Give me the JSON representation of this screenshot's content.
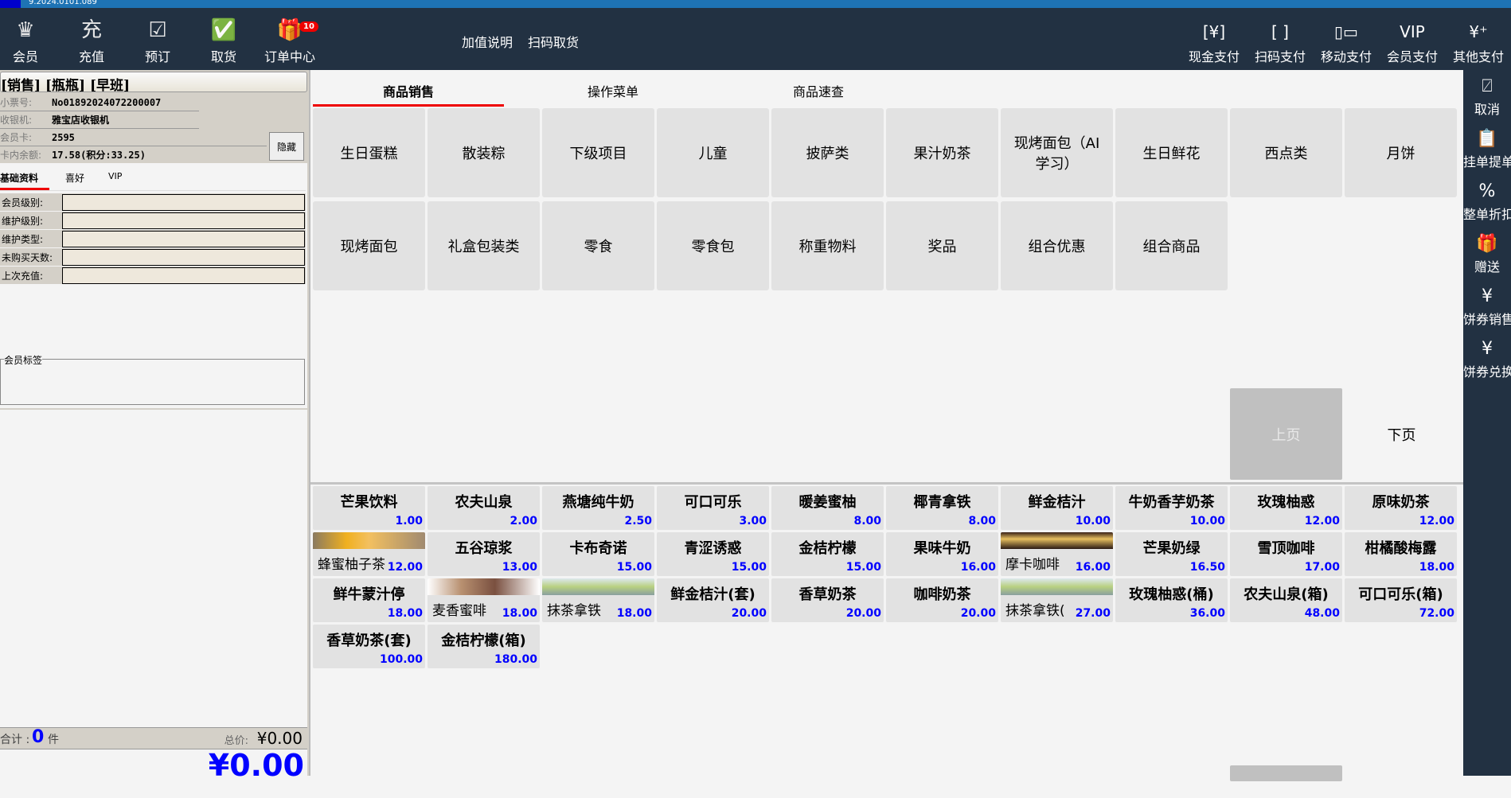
{
  "window": {
    "version": "9.2024.0101.089"
  },
  "header": {
    "left_buttons": [
      {
        "label": "会员",
        "icon": "crown-icon",
        "glyph": "♛"
      },
      {
        "label": "充值",
        "icon": "recharge-icon",
        "glyph": "充"
      },
      {
        "label": "预订",
        "icon": "calendar-check-icon",
        "glyph": "☑"
      },
      {
        "label": "取货",
        "icon": "package-check-icon",
        "glyph": "✅"
      },
      {
        "label": "订单中心",
        "icon": "gift-icon",
        "glyph": "🎁",
        "badge": "10"
      }
    ],
    "links": [
      "加值说明",
      "扫码取货"
    ],
    "payments": [
      {
        "label": "现金支付",
        "icon": "cash-icon",
        "glyph": "[¥]"
      },
      {
        "label": "扫码支付",
        "icon": "scan-icon",
        "glyph": "[ ]"
      },
      {
        "label": "移动支付",
        "icon": "mobile-pay-icon",
        "glyph": "▯▭"
      },
      {
        "label": "会员支付",
        "icon": "vip-icon",
        "glyph": "VIP"
      },
      {
        "label": "其他支付",
        "icon": "other-pay-icon",
        "glyph": "¥⁺"
      }
    ]
  },
  "left": {
    "title": "[销售] [瓶瓶] [早班]",
    "info": [
      {
        "label": "小票号:",
        "value": "No01892024072200007"
      },
      {
        "label": "收银机:",
        "value": "雅宝店收银机"
      },
      {
        "label": "会员卡:",
        "value": "2595"
      },
      {
        "label": "卡内余额:",
        "value": "17.58(积分:33.25)"
      }
    ],
    "hide_label": "隐藏",
    "tabs": [
      "基础资料",
      "喜好",
      "VIP"
    ],
    "fields": [
      {
        "label": "会员级别:",
        "value": ""
      },
      {
        "label": "维护级别:",
        "value": ""
      },
      {
        "label": "维护类型:",
        "value": ""
      },
      {
        "label": "未购买天数:",
        "value": ""
      },
      {
        "label": "上次充值:",
        "value": ""
      }
    ],
    "tag_label": "会员标签",
    "summary": {
      "count_label": "合计 :",
      "count": "0",
      "unit": "件",
      "total_label": "总价:",
      "total": "¥0.00"
    },
    "grand_total": "¥0.00"
  },
  "main": {
    "tabs": [
      "商品销售",
      "操作菜单",
      "商品速查"
    ],
    "categories": [
      "生日蛋糕",
      "散装粽",
      "下级项目",
      "儿童",
      "披萨类",
      "果汁奶茶",
      "现烤面包（AI学习）",
      "生日鲜花",
      "西点类",
      "月饼",
      "现烤面包",
      "礼盒包装类",
      "零食",
      "零食包",
      "称重物料",
      "奖品",
      "组合优惠",
      "组合商品"
    ],
    "pager": {
      "prev": "上页",
      "next": "下页"
    },
    "products": [
      {
        "name": "芒果饮料",
        "price": "1.00"
      },
      {
        "name": "农夫山泉",
        "price": "2.00"
      },
      {
        "name": "燕塘纯牛奶",
        "price": "2.50"
      },
      {
        "name": "可口可乐",
        "price": "3.00"
      },
      {
        "name": "暖姜蜜柚",
        "price": "8.00"
      },
      {
        "name": "椰青拿铁",
        "price": "8.00"
      },
      {
        "name": "鲜金桔汁",
        "price": "10.00"
      },
      {
        "name": "牛奶香芋奶茶",
        "price": "10.00"
      },
      {
        "name": "玫瑰柚惑",
        "price": "12.00"
      },
      {
        "name": "原味奶茶",
        "price": "12.00"
      },
      {
        "name": "蜂蜜柚子茶",
        "price": "12.00",
        "image": "honey"
      },
      {
        "name": "五谷琼浆",
        "price": "13.00"
      },
      {
        "name": "卡布奇诺",
        "price": "15.00"
      },
      {
        "name": "青涩诱惑",
        "price": "15.00"
      },
      {
        "name": "金桔柠檬",
        "price": "15.00"
      },
      {
        "name": "果味牛奶",
        "price": "16.00"
      },
      {
        "name": "摩卡咖啡",
        "price": "16.00",
        "image": "mocha"
      },
      {
        "name": "芒果奶绿",
        "price": "16.50"
      },
      {
        "name": "雪顶咖啡",
        "price": "17.00"
      },
      {
        "name": "柑橘酸梅露",
        "price": "18.00"
      },
      {
        "name": "鲜牛蒙汁停",
        "price": "18.00"
      },
      {
        "name": "麦香蜜啡",
        "price": "18.00",
        "image": "coffee"
      },
      {
        "name": "抹茶拿铁",
        "price": "18.00",
        "image": "matcha"
      },
      {
        "name": "鲜金桔汁(套)",
        "price": "20.00"
      },
      {
        "name": "香草奶茶",
        "price": "20.00"
      },
      {
        "name": "咖啡奶茶",
        "price": "20.00"
      },
      {
        "name": "抹茶拿铁(",
        "price": "27.00",
        "image": "matcha"
      },
      {
        "name": "玫瑰柚惑(桶)",
        "price": "36.00"
      },
      {
        "name": "农夫山泉(箱)",
        "price": "48.00"
      },
      {
        "name": "可口可乐(箱)",
        "price": "72.00"
      },
      {
        "name": "香草奶茶(套)",
        "price": "100.00"
      },
      {
        "name": "金桔柠檬(箱)",
        "price": "180.00"
      }
    ]
  },
  "right_sidebar": [
    {
      "label": "取消",
      "icon": "cancel-order-icon",
      "glyph": "⍁"
    },
    {
      "label": "挂单提单",
      "icon": "hold-order-icon",
      "glyph": "📋"
    },
    {
      "label": "整单折扣",
      "icon": "discount-icon",
      "glyph": "%"
    },
    {
      "label": "赠送",
      "icon": "gift-icon",
      "glyph": "🎁"
    },
    {
      "label": "饼券销售",
      "icon": "coupon-sale-icon",
      "glyph": "¥"
    },
    {
      "label": "饼券兑换",
      "icon": "coupon-redeem-icon",
      "glyph": "¥"
    }
  ],
  "colors": {
    "header": "#223142",
    "accent": "#ee0000",
    "price": "#0000ff",
    "tile": "#e2e2e2"
  }
}
